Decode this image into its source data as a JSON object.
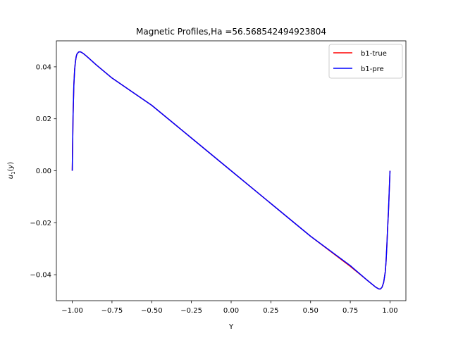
{
  "chart_data": {
    "type": "line",
    "title": "Magnetic Profiles,Ha =56.568542494923804",
    "xlabel": "Y",
    "ylabel": "u_1(y)",
    "xlim": [
      -1.1,
      1.1
    ],
    "ylim": [
      -0.05,
      0.05
    ],
    "xticks": [
      -1.0,
      -0.75,
      -0.5,
      -0.25,
      0.0,
      0.25,
      0.5,
      0.75,
      1.0
    ],
    "xtick_labels": [
      "−1.00",
      "−0.75",
      "−0.50",
      "−0.25",
      "0.00",
      "0.25",
      "0.50",
      "0.75",
      "1.00"
    ],
    "yticks": [
      -0.04,
      -0.02,
      0.0,
      0.02,
      0.04
    ],
    "ytick_labels": [
      "−0.04",
      "−0.02",
      "0.00",
      "0.02",
      "0.04"
    ],
    "grid": false,
    "legend_position": "top-right",
    "series": [
      {
        "name": "b1-true",
        "color": "#ff0000",
        "x": [
          -1.0,
          -0.995,
          -0.99,
          -0.985,
          -0.98,
          -0.975,
          -0.97,
          -0.96,
          -0.95,
          -0.94,
          -0.93,
          -0.91,
          -0.85,
          -0.75,
          -0.5,
          -0.25,
          0.0,
          0.25,
          0.5,
          0.75,
          0.85,
          0.91,
          0.93,
          0.94,
          0.95,
          0.96,
          0.97,
          0.975,
          0.98,
          0.985,
          0.99,
          0.995,
          1.0
        ],
        "y": [
          0.0,
          0.021,
          0.033,
          0.039,
          0.042,
          0.044,
          0.045,
          0.0457,
          0.0458,
          0.0455,
          0.0451,
          0.0441,
          0.0408,
          0.0357,
          0.0252,
          0.0126,
          0.0,
          -0.0126,
          -0.0252,
          -0.0368,
          -0.0418,
          -0.0448,
          -0.0455,
          -0.0455,
          -0.0448,
          -0.043,
          -0.039,
          -0.035,
          -0.029,
          -0.022,
          -0.016,
          -0.008,
          0.0
        ]
      },
      {
        "name": "b1-pre",
        "color": "#0000ff",
        "x": [
          -1.0,
          -0.995,
          -0.99,
          -0.985,
          -0.98,
          -0.975,
          -0.97,
          -0.96,
          -0.95,
          -0.94,
          -0.93,
          -0.91,
          -0.85,
          -0.75,
          -0.5,
          -0.25,
          0.0,
          0.25,
          0.5,
          0.75,
          0.85,
          0.91,
          0.93,
          0.94,
          0.95,
          0.96,
          0.97,
          0.975,
          0.98,
          0.985,
          0.99,
          0.995,
          1.0
        ],
        "y": [
          0.0,
          0.021,
          0.033,
          0.039,
          0.042,
          0.044,
          0.045,
          0.0457,
          0.0458,
          0.0455,
          0.0451,
          0.0441,
          0.0408,
          0.0357,
          0.0252,
          0.0126,
          0.0,
          -0.0126,
          -0.0252,
          -0.0365,
          -0.0418,
          -0.0448,
          -0.0455,
          -0.0455,
          -0.0448,
          -0.043,
          -0.039,
          -0.035,
          -0.029,
          -0.022,
          -0.016,
          -0.008,
          0.0
        ]
      }
    ]
  }
}
